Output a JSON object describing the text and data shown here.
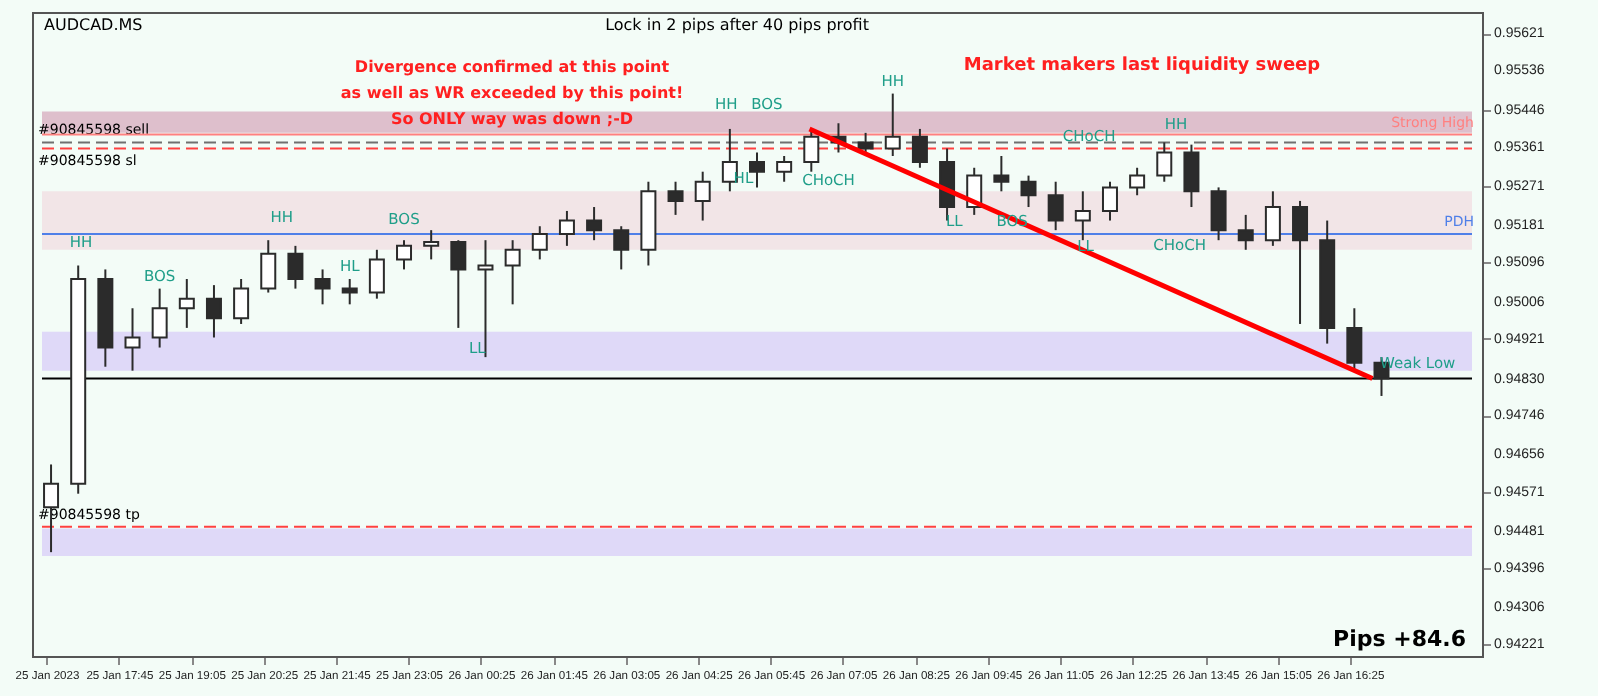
{
  "chart_data": {
    "type": "candlestick",
    "color": "#2b2b2b",
    "x": [
      "2023-01-25T16:30",
      "2023-01-25T17:00",
      "2023-01-25T17:30",
      "2023-01-25T18:00",
      "2023-01-25T18:30",
      "2023-01-25T19:00",
      "2023-01-25T19:30",
      "2023-01-25T20:00",
      "2023-01-25T20:30",
      "2023-01-25T21:00",
      "2023-01-25T21:30",
      "2023-01-25T22:00",
      "2023-01-25T22:30",
      "2023-01-25T23:00",
      "2023-01-25T23:30",
      "2023-01-26T00:00",
      "2023-01-26T00:30",
      "2023-01-26T01:00",
      "2023-01-26T01:30",
      "2023-01-26T02:00",
      "2023-01-26T02:30",
      "2023-01-26T03:00",
      "2023-01-26T03:30",
      "2023-01-26T04:00",
      "2023-01-26T04:30",
      "2023-01-26T05:00",
      "2023-01-26T05:30",
      "2023-01-26T06:00",
      "2023-01-26T06:30",
      "2023-01-26T07:00",
      "2023-01-26T07:30",
      "2023-01-26T08:00",
      "2023-01-26T08:30",
      "2023-01-26T09:00",
      "2023-01-26T09:30",
      "2023-01-26T10:00",
      "2023-01-26T10:30",
      "2023-01-26T11:00",
      "2023-01-26T11:30",
      "2023-01-26T12:00",
      "2023-01-26T12:30",
      "2023-01-26T13:00",
      "2023-01-26T13:30",
      "2023-01-26T14:00",
      "2023-01-26T14:30",
      "2023-01-26T15:00",
      "2023-01-26T15:30",
      "2023-01-26T16:00",
      "2023-01-26T16:30",
      "2023-01-26T17:00"
    ],
    "ohlc": [
      [
        0.94535,
        0.94633,
        0.94432,
        0.94589
      ],
      [
        0.94589,
        0.95089,
        0.94566,
        0.95058
      ],
      [
        0.95058,
        0.9508,
        0.94857,
        0.94901
      ],
      [
        0.94901,
        0.94991,
        0.94848,
        0.94924
      ],
      [
        0.94924,
        0.95036,
        0.94901,
        0.94991
      ],
      [
        0.94991,
        0.95058,
        0.94946,
        0.95013
      ],
      [
        0.95013,
        0.95044,
        0.94924,
        0.94968
      ],
      [
        0.94968,
        0.95058,
        0.94955,
        0.95036
      ],
      [
        0.95036,
        0.95147,
        0.95027,
        0.95116
      ],
      [
        0.95116,
        0.95134,
        0.95036,
        0.95058
      ],
      [
        0.95058,
        0.9508,
        0.95,
        0.95036
      ],
      [
        0.95036,
        0.95058,
        0.95,
        0.95027
      ],
      [
        0.95027,
        0.95125,
        0.95013,
        0.95103
      ],
      [
        0.95103,
        0.95147,
        0.9508,
        0.95134
      ],
      [
        0.95134,
        0.9517,
        0.95103,
        0.95143
      ],
      [
        0.95143,
        0.95147,
        0.94946,
        0.9508
      ],
      [
        0.9508,
        0.95147,
        0.94879,
        0.95089
      ],
      [
        0.95089,
        0.95147,
        0.95,
        0.95125
      ],
      [
        0.95125,
        0.95179,
        0.95103,
        0.95161
      ],
      [
        0.95161,
        0.95214,
        0.95134,
        0.95192
      ],
      [
        0.95192,
        0.95223,
        0.95147,
        0.9517
      ],
      [
        0.9517,
        0.95179,
        0.9508,
        0.95125
      ],
      [
        0.95125,
        0.95281,
        0.95089,
        0.95259
      ],
      [
        0.95259,
        0.95281,
        0.95205,
        0.95237
      ],
      [
        0.95237,
        0.95304,
        0.95192,
        0.95281
      ],
      [
        0.95281,
        0.95402,
        0.95259,
        0.95326
      ],
      [
        0.95326,
        0.95348,
        0.95268,
        0.95304
      ],
      [
        0.95304,
        0.9534,
        0.95281,
        0.95326
      ],
      [
        0.95326,
        0.95402,
        0.95304,
        0.95384
      ],
      [
        0.95384,
        0.95415,
        0.95348,
        0.95371
      ],
      [
        0.95371,
        0.95393,
        0.9534,
        0.95357
      ],
      [
        0.95357,
        0.95483,
        0.9534,
        0.95384
      ],
      [
        0.95384,
        0.95402,
        0.95313,
        0.95326
      ],
      [
        0.95326,
        0.95357,
        0.95192,
        0.95223
      ],
      [
        0.95223,
        0.95313,
        0.95205,
        0.95295
      ],
      [
        0.95295,
        0.9534,
        0.95259,
        0.95281
      ],
      [
        0.95281,
        0.95295,
        0.95223,
        0.9525
      ],
      [
        0.9525,
        0.95281,
        0.9517,
        0.95192
      ],
      [
        0.95192,
        0.95259,
        0.95147,
        0.95214
      ],
      [
        0.95214,
        0.95281,
        0.95192,
        0.95268
      ],
      [
        0.95268,
        0.95313,
        0.9525,
        0.95295
      ],
      [
        0.95295,
        0.95371,
        0.95281,
        0.95348
      ],
      [
        0.95348,
        0.95366,
        0.95223,
        0.95259
      ],
      [
        0.95259,
        0.95268,
        0.95147,
        0.9517
      ],
      [
        0.9517,
        0.95205,
        0.95125,
        0.95147
      ],
      [
        0.95147,
        0.95259,
        0.95134,
        0.95223
      ],
      [
        0.95223,
        0.95237,
        0.94955,
        0.95147
      ],
      [
        0.95147,
        0.95192,
        0.9491,
        0.94946
      ],
      [
        0.94946,
        0.94991,
        0.94848,
        0.94866
      ],
      [
        0.94866,
        0.94879,
        0.9479,
        0.9483
      ]
    ],
    "series": [
      {
        "type": "line",
        "color": "#ff0000",
        "x": [
          "2023-01-26T06:28",
          "2023-01-26T16:50"
        ],
        "values": [
          0.95402,
          0.9483
        ]
      }
    ],
    "xlim": [
      "2023-01-25T16:20",
      "2023-01-26T18:40"
    ],
    "xticks": [
      {
        "value": "2023-01-25T16:25",
        "label": "25 Jan 2023"
      },
      {
        "value": "2023-01-25T17:45",
        "label": "25 Jan 17:45"
      },
      {
        "value": "2023-01-25T19:05",
        "label": "25 Jan 19:05"
      },
      {
        "value": "2023-01-25T20:25",
        "label": "25 Jan 20:25"
      },
      {
        "value": "2023-01-25T21:45",
        "label": "25 Jan 21:45"
      },
      {
        "value": "2023-01-25T23:05",
        "label": "25 Jan 23:05"
      },
      {
        "value": "2023-01-26T00:25",
        "label": "26 Jan 00:25"
      },
      {
        "value": "2023-01-26T01:45",
        "label": "26 Jan 01:45"
      },
      {
        "value": "2023-01-26T03:05",
        "label": "26 Jan 03:05"
      },
      {
        "value": "2023-01-26T04:25",
        "label": "26 Jan 04:25"
      },
      {
        "value": "2023-01-26T05:45",
        "label": "26 Jan 05:45"
      },
      {
        "value": "2023-01-26T07:05",
        "label": "26 Jan 07:05"
      },
      {
        "value": "2023-01-26T08:25",
        "label": "26 Jan 08:25"
      },
      {
        "value": "2023-01-26T09:45",
        "label": "26 Jan 09:45"
      },
      {
        "value": "2023-01-26T11:05",
        "label": "26 Jan 11:05"
      },
      {
        "value": "2023-01-26T12:25",
        "label": "26 Jan 12:25"
      },
      {
        "value": "2023-01-26T13:45",
        "label": "26 Jan 13:45"
      },
      {
        "value": "2023-01-26T15:05",
        "label": "26 Jan 15:05"
      },
      {
        "value": "2023-01-26T16:25",
        "label": "26 Jan 16:25"
      }
    ],
    "ylim": [
      0.94194,
      0.9567
    ],
    "yticks": [
      {
        "value": 0.95621,
        "label": "0.95621"
      },
      {
        "value": 0.95536,
        "label": "0.95536"
      },
      {
        "value": 0.95446,
        "label": "0.95446"
      },
      {
        "value": 0.95361,
        "label": "0.95361"
      },
      {
        "value": 0.95271,
        "label": "0.95271"
      },
      {
        "value": 0.95181,
        "label": "0.95181"
      },
      {
        "value": 0.95096,
        "label": "0.95096"
      },
      {
        "value": 0.95006,
        "label": "0.95006"
      },
      {
        "value": 0.94921,
        "label": "0.94921"
      },
      {
        "value": 0.9483,
        "label": "0.94830"
      },
      {
        "value": 0.94746,
        "label": "0.94746"
      },
      {
        "value": 0.94656,
        "label": "0.94656"
      },
      {
        "value": 0.94571,
        "label": "0.94571"
      },
      {
        "value": 0.94481,
        "label": "0.94481"
      },
      {
        "value": 0.94396,
        "label": "0.94396"
      },
      {
        "value": 0.94306,
        "label": "0.94306"
      },
      {
        "value": 0.94221,
        "label": "0.94221"
      }
    ],
    "bands": [
      {
        "axis": "y",
        "from": 0.94848,
        "to": 0.94937,
        "color": "#ddd5f7"
      },
      {
        "axis": "y",
        "from": 0.94423,
        "to": 0.94486,
        "color": "#ddd5f7"
      },
      {
        "axis": "y",
        "from": 0.95393,
        "to": 0.95442,
        "color": "#dcb8c6"
      },
      {
        "axis": "y",
        "from": 0.95125,
        "to": 0.95259,
        "color": "#f2e2e4"
      }
    ],
    "ref_lines": [
      {
        "axis": "y",
        "value": 0.95371,
        "label": "#90845598 sell",
        "color": "#707070",
        "line_style": "dashed"
      },
      {
        "axis": "y",
        "value": 0.95357,
        "label": "#90845598 sl",
        "color": "#ff4040",
        "line_style": "dashed"
      },
      {
        "axis": "y",
        "value": 0.9449,
        "label": "#90845598 tp",
        "color": "#ff4040",
        "line_style": "dashed"
      },
      {
        "axis": "y",
        "value": 0.95161,
        "label": "PDH",
        "color": "#4f7fe8",
        "line_style": "solid"
      },
      {
        "axis": "y",
        "value": 0.95389,
        "label": "Strong High",
        "color": "#ff8080",
        "line_style": "solid"
      },
      {
        "axis": "y",
        "value": 0.9483,
        "color": "#000000",
        "line_style": "solid"
      }
    ],
    "annotations": [
      "AUDCAD.MS",
      "Lock in 2 pips after 40 pips profit",
      "Divergence confirmed at this point\nas well as WR exceeded by this point!",
      "So ONLY way was down ;-D",
      "Market makers last liquidity sweep",
      "Pips +84.6",
      {
        "text": "HH",
        "x": "2023-01-25T17:03",
        "y": 0.95112
      },
      {
        "text": "BOS",
        "x": "2023-01-25T18:30",
        "y": 0.95036
      },
      {
        "text": "HH",
        "x": "2023-01-25T20:45",
        "y": 0.9517
      },
      {
        "text": "HL",
        "x": "2023-01-25T22:00",
        "y": 0.95058
      },
      {
        "text": "BOS",
        "x": "2023-01-25T23:00",
        "y": 0.95165
      },
      {
        "text": "LL",
        "x": "2023-01-26T00:21",
        "y": 0.9487
      },
      {
        "text": "HH",
        "x": "2023-01-26T04:56",
        "y": 0.95429
      },
      {
        "text": "BOS",
        "x": "2023-01-26T05:41",
        "y": 0.95429
      },
      {
        "text": "HL",
        "x": "2023-01-26T05:15",
        "y": 0.95259
      },
      {
        "text": "CHoCH",
        "x": "2023-01-26T06:49",
        "y": 0.95255
      },
      {
        "text": "HH",
        "x": "2023-01-26T08:00",
        "y": 0.95483
      },
      {
        "text": "LL",
        "x": "2023-01-26T09:08",
        "y": 0.95161
      },
      {
        "text": "BOS",
        "x": "2023-01-26T10:12",
        "y": 0.95161
      },
      {
        "text": "CHoCH",
        "x": "2023-01-26T11:37",
        "y": 0.95357
      },
      {
        "text": "LL",
        "x": "2023-01-26T11:33",
        "y": 0.95103
      },
      {
        "text": "HH",
        "x": "2023-01-26T13:13",
        "y": 0.95384
      },
      {
        "text": "CHoCH",
        "x": "2023-01-26T13:17",
        "y": 0.95107
      },
      {
        "text": "Weak Low",
        "x": "2023-01-26T17:40",
        "y": 0.94835
      }
    ]
  }
}
